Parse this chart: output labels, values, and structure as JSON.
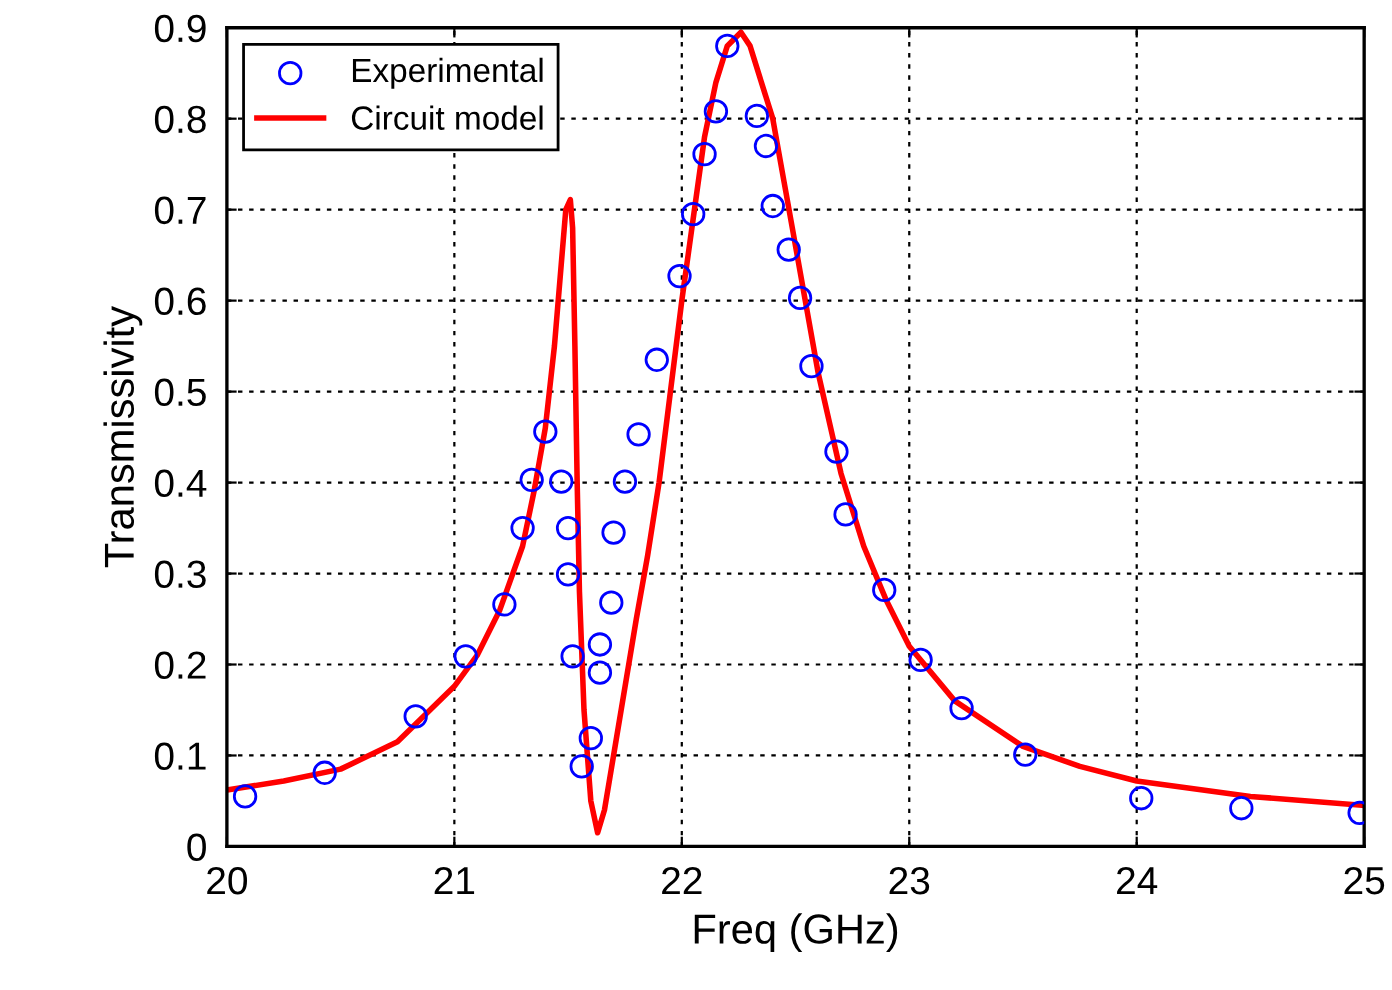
{
  "chart_data": {
    "type": "scatter",
    "xlabel": "Freq (GHz)",
    "ylabel": "Transmissivity",
    "xlim": [
      20,
      25
    ],
    "ylim": [
      0,
      0.9
    ],
    "xticks": [
      20,
      21,
      22,
      23,
      24,
      25
    ],
    "yticks": [
      0,
      0.1,
      0.2,
      0.3,
      0.4,
      0.5,
      0.6,
      0.7,
      0.8,
      0.9
    ],
    "grid": true,
    "legend": "top left",
    "series": [
      {
        "name": "Experimental",
        "marker": "circle",
        "color": "#0000ff",
        "x": [
          20.08,
          20.43,
          20.83,
          21.05,
          21.22,
          21.3,
          21.34,
          21.4,
          21.47,
          21.5,
          21.5,
          21.52,
          21.56,
          21.6,
          21.64,
          21.64,
          21.69,
          21.7,
          21.75,
          21.81,
          21.89,
          21.99,
          22.05,
          22.1,
          22.15,
          22.2,
          22.33,
          22.37,
          22.4,
          22.47,
          22.52,
          22.57,
          22.68,
          22.72,
          22.89,
          23.05,
          23.23,
          23.51,
          24.02,
          24.46,
          24.98
        ],
        "values": [
          0.055,
          0.081,
          0.143,
          0.209,
          0.266,
          0.35,
          0.403,
          0.456,
          0.401,
          0.35,
          0.299,
          0.209,
          0.088,
          0.119,
          0.222,
          0.191,
          0.268,
          0.345,
          0.401,
          0.453,
          0.535,
          0.627,
          0.695,
          0.761,
          0.808,
          0.88,
          0.803,
          0.77,
          0.704,
          0.656,
          0.603,
          0.528,
          0.434,
          0.365,
          0.282,
          0.205,
          0.152,
          0.101,
          0.053,
          0.042,
          0.037
        ]
      },
      {
        "name": "Circuit model",
        "type": "line",
        "marker": "none",
        "line_style": "solid",
        "color": "#ff0000",
        "x": [
          20,
          20.25,
          20.5,
          20.75,
          21,
          21.1,
          21.2,
          21.3,
          21.35,
          21.4,
          21.44,
          21.47,
          21.49,
          21.51,
          21.52,
          21.53,
          21.54,
          21.55,
          21.57,
          21.6,
          21.63,
          21.66,
          21.7,
          21.75,
          21.8,
          21.85,
          21.9,
          21.95,
          22,
          22.05,
          22.1,
          22.15,
          22.2,
          22.26,
          22.3,
          22.35,
          22.4,
          22.45,
          22.5,
          22.6,
          22.7,
          22.8,
          22.9,
          23,
          23.2,
          23.5,
          23.75,
          24,
          24.5,
          25
        ],
        "values": [
          0.062,
          0.072,
          0.085,
          0.115,
          0.176,
          0.21,
          0.26,
          0.33,
          0.39,
          0.46,
          0.55,
          0.64,
          0.7,
          0.711,
          0.68,
          0.55,
          0.4,
          0.28,
          0.15,
          0.05,
          0.015,
          0.04,
          0.1,
          0.175,
          0.25,
          0.32,
          0.4,
          0.5,
          0.6,
          0.69,
          0.78,
          0.84,
          0.88,
          0.895,
          0.88,
          0.84,
          0.8,
          0.73,
          0.66,
          0.52,
          0.41,
          0.33,
          0.27,
          0.22,
          0.16,
          0.11,
          0.088,
          0.072,
          0.055,
          0.045
        ]
      }
    ]
  }
}
